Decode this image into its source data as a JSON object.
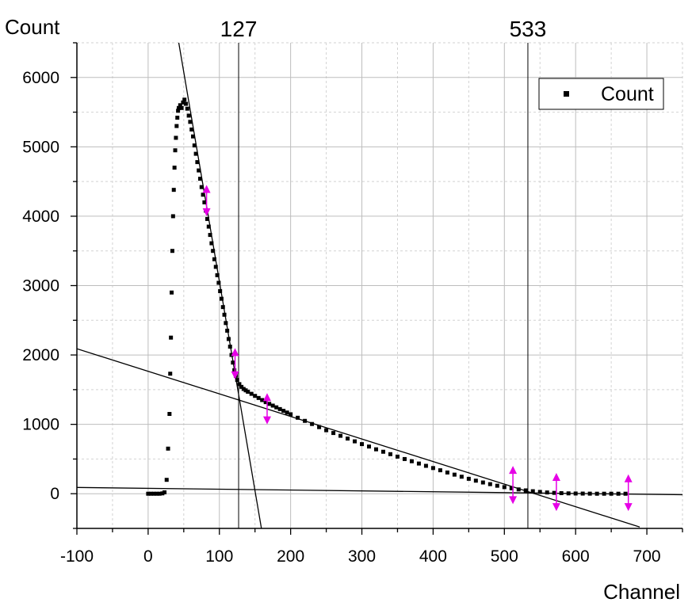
{
  "chart_data": {
    "type": "scatter",
    "xlabel": "Channel",
    "ylabel": "Count",
    "xlim": [
      -100,
      750
    ],
    "ylim": [
      -500,
      6500
    ],
    "x_ticks": [
      -100,
      0,
      100,
      200,
      300,
      400,
      500,
      600,
      700
    ],
    "y_ticks": [
      0,
      1000,
      2000,
      3000,
      4000,
      5000,
      6000
    ],
    "grid": true,
    "legend": {
      "position": "top-right",
      "entries": [
        "Count"
      ]
    },
    "markers": [
      {
        "label": "127",
        "x": 127
      },
      {
        "label": "533",
        "x": 533
      }
    ],
    "series": [
      {
        "name": "Count",
        "marker": "square",
        "color": "#000000",
        "points": [
          [
            0,
            0
          ],
          [
            4,
            0
          ],
          [
            8,
            0
          ],
          [
            12,
            0
          ],
          [
            16,
            0
          ],
          [
            20,
            5
          ],
          [
            23,
            20
          ],
          [
            26,
            200
          ],
          [
            28,
            650
          ],
          [
            30,
            1150
          ],
          [
            31,
            1730
          ],
          [
            32,
            2250
          ],
          [
            33,
            2900
          ],
          [
            34,
            3500
          ],
          [
            35,
            4000
          ],
          [
            36,
            4380
          ],
          [
            37,
            4700
          ],
          [
            38,
            4950
          ],
          [
            39,
            5130
          ],
          [
            40,
            5300
          ],
          [
            41,
            5420
          ],
          [
            42,
            5520
          ],
          [
            43,
            5560
          ],
          [
            45,
            5600
          ],
          [
            47,
            5560
          ],
          [
            49,
            5640
          ],
          [
            51,
            5680
          ],
          [
            53,
            5620
          ],
          [
            55,
            5550
          ],
          [
            57,
            5450
          ],
          [
            59,
            5360
          ],
          [
            61,
            5250
          ],
          [
            63,
            5150
          ],
          [
            65,
            5020
          ],
          [
            67,
            4900
          ],
          [
            69,
            4780
          ],
          [
            71,
            4660
          ],
          [
            73,
            4540
          ],
          [
            75,
            4420
          ],
          [
            77,
            4310
          ],
          [
            79,
            4200
          ],
          [
            81,
            4080
          ],
          [
            83,
            3960
          ],
          [
            85,
            3850
          ],
          [
            87,
            3730
          ],
          [
            89,
            3610
          ],
          [
            91,
            3500
          ],
          [
            93,
            3380
          ],
          [
            95,
            3270
          ],
          [
            97,
            3150
          ],
          [
            99,
            3040
          ],
          [
            101,
            2920
          ],
          [
            103,
            2810
          ],
          [
            105,
            2690
          ],
          [
            107,
            2580
          ],
          [
            109,
            2460
          ],
          [
            111,
            2350
          ],
          [
            113,
            2230
          ],
          [
            115,
            2120
          ],
          [
            117,
            2000
          ],
          [
            119,
            1890
          ],
          [
            121,
            1780
          ],
          [
            123,
            1700
          ],
          [
            125,
            1640
          ],
          [
            128,
            1580
          ],
          [
            131,
            1540
          ],
          [
            134,
            1510
          ],
          [
            137,
            1490
          ],
          [
            140,
            1470
          ],
          [
            145,
            1440
          ],
          [
            150,
            1410
          ],
          [
            155,
            1380
          ],
          [
            160,
            1350
          ],
          [
            165,
            1320
          ],
          [
            170,
            1295
          ],
          [
            175,
            1270
          ],
          [
            180,
            1245
          ],
          [
            185,
            1220
          ],
          [
            190,
            1195
          ],
          [
            195,
            1170
          ],
          [
            200,
            1145
          ],
          [
            210,
            1095
          ],
          [
            220,
            1050
          ],
          [
            230,
            1005
          ],
          [
            240,
            960
          ],
          [
            250,
            915
          ],
          [
            260,
            875
          ],
          [
            270,
            835
          ],
          [
            280,
            795
          ],
          [
            290,
            755
          ],
          [
            300,
            715
          ],
          [
            310,
            680
          ],
          [
            320,
            640
          ],
          [
            330,
            605
          ],
          [
            340,
            570
          ],
          [
            350,
            535
          ],
          [
            360,
            500
          ],
          [
            370,
            468
          ],
          [
            380,
            435
          ],
          [
            390,
            402
          ],
          [
            400,
            370
          ],
          [
            410,
            338
          ],
          [
            420,
            306
          ],
          [
            430,
            275
          ],
          [
            440,
            245
          ],
          [
            450,
            215
          ],
          [
            460,
            188
          ],
          [
            470,
            162
          ],
          [
            480,
            138
          ],
          [
            490,
            115
          ],
          [
            500,
            95
          ],
          [
            510,
            78
          ],
          [
            520,
            62
          ],
          [
            530,
            48
          ],
          [
            540,
            36
          ],
          [
            550,
            26
          ],
          [
            560,
            18
          ],
          [
            570,
            12
          ],
          [
            580,
            8
          ],
          [
            590,
            5
          ],
          [
            600,
            3
          ],
          [
            610,
            2
          ],
          [
            620,
            1
          ],
          [
            630,
            0
          ],
          [
            640,
            0
          ],
          [
            650,
            0
          ],
          [
            660,
            0
          ],
          [
            670,
            0
          ]
        ]
      }
    ],
    "fit_lines": [
      {
        "points": [
          [
            -100,
            90
          ],
          [
            750,
            -15
          ]
        ]
      },
      {
        "points": [
          [
            -100,
            2090
          ],
          [
            690,
            -480
          ]
        ]
      },
      {
        "points": [
          [
            43,
            6500
          ],
          [
            159,
            -500
          ]
        ]
      }
    ],
    "range_markers": [
      {
        "x": 82,
        "y_low": 4000,
        "y_high": 4450
      },
      {
        "x": 122,
        "y_low": 1650,
        "y_high": 2100
      },
      {
        "x": 167,
        "y_low": 1000,
        "y_high": 1450
      },
      {
        "x": 512,
        "y_low": -150,
        "y_high": 400
      },
      {
        "x": 573,
        "y_low": -250,
        "y_high": 300
      },
      {
        "x": 674,
        "y_low": -250,
        "y_high": 280
      }
    ],
    "range_marker_color": "#e600e6"
  }
}
